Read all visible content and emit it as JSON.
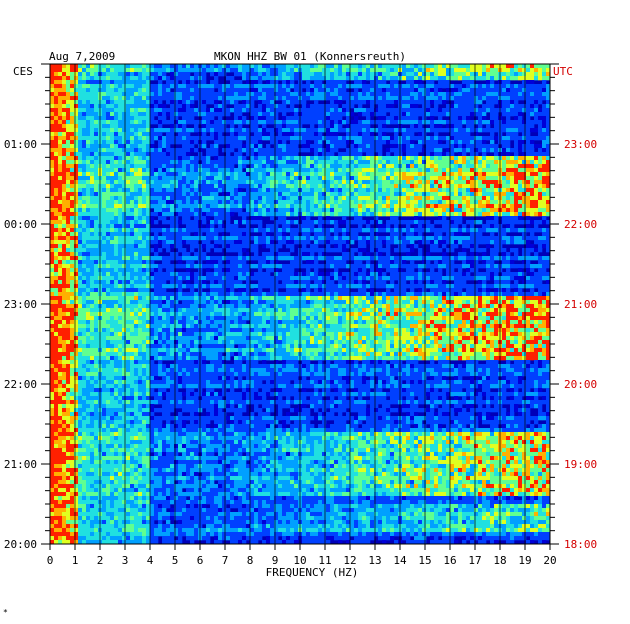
{
  "header": {
    "date": "Aug 7,2009",
    "station": "MKON HHZ BW 01 (Konnersreuth)"
  },
  "footnote": "*",
  "colors": {
    "frame": "#000000",
    "utc_text": "#d40000",
    "background": "#0000b8",
    "ramp": [
      "#0000a0",
      "#0000d8",
      "#0040ff",
      "#00a0ff",
      "#20e0e0",
      "#60ff90",
      "#e0ff20",
      "#ffb000",
      "#ff2000"
    ]
  },
  "chart_data": {
    "type": "heatmap",
    "title": "MKON HHZ BW 01 (Konnersreuth)",
    "date": "Aug 7,2009",
    "xlabel": "FREQUENCY (HZ)",
    "x_ticks": [
      "0",
      "1",
      "2",
      "3",
      "4",
      "5",
      "6",
      "7",
      "8",
      "9",
      "10",
      "11",
      "12",
      "13",
      "14",
      "15",
      "16",
      "17",
      "18",
      "19",
      "20"
    ],
    "xlim": [
      0,
      20
    ],
    "left_axis": {
      "label": "CES",
      "ticks": [
        {
          "label": "01:00",
          "hours_from_top": 1
        },
        {
          "label": "00:00",
          "hours_from_top": 2
        },
        {
          "label": "23:00",
          "hours_from_top": 3
        },
        {
          "label": "22:00",
          "hours_from_top": 4
        },
        {
          "label": "21:00",
          "hours_from_top": 5
        },
        {
          "label": "20:00",
          "hours_from_top": 6
        }
      ]
    },
    "right_axis": {
      "label": "UTC",
      "ticks": [
        {
          "label": "23:00",
          "hours_from_top": 1
        },
        {
          "label": "22:00",
          "hours_from_top": 2
        },
        {
          "label": "21:00",
          "hours_from_top": 3
        },
        {
          "label": "20:00",
          "hours_from_top": 4
        },
        {
          "label": "19:00",
          "hours_from_top": 5
        },
        {
          "label": "18:00",
          "hours_from_top": 6
        }
      ]
    },
    "time_span_hours": 6,
    "minor_ticks_per_hour": 6,
    "grid": true,
    "high_activity_bands_hours_from_top": [
      {
        "from": 0.0,
        "to": 0.2,
        "level": 0.55
      },
      {
        "from": 1.15,
        "to": 1.9,
        "level": 0.7
      },
      {
        "from": 2.9,
        "to": 3.7,
        "level": 0.75
      },
      {
        "from": 4.6,
        "to": 5.4,
        "level": 0.6
      },
      {
        "from": 5.5,
        "to": 5.85,
        "level": 0.4
      }
    ],
    "low_frequency_energy_hz": [
      0,
      1.2
    ]
  }
}
